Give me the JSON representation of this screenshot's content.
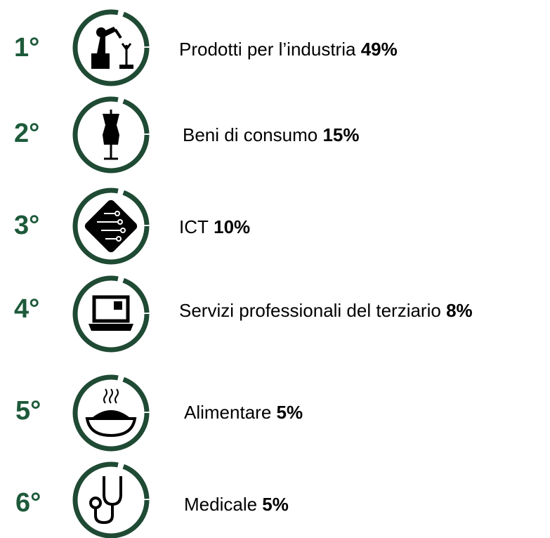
{
  "items": [
    {
      "rank": "1°",
      "label": "Prodotti per l’industria",
      "value": "49%"
    },
    {
      "rank": "2°",
      "label": "Beni di consumo",
      "value": "15%"
    },
    {
      "rank": "3°",
      "label": "ICT",
      "value": "10%"
    },
    {
      "rank": "4°",
      "label": "Servizi professionali del terziario",
      "value": "8%"
    },
    {
      "rank": "5°",
      "label": "Alimentare",
      "value": "5%"
    },
    {
      "rank": "6°",
      "label": "Medicale",
      "value": "5%"
    }
  ]
}
